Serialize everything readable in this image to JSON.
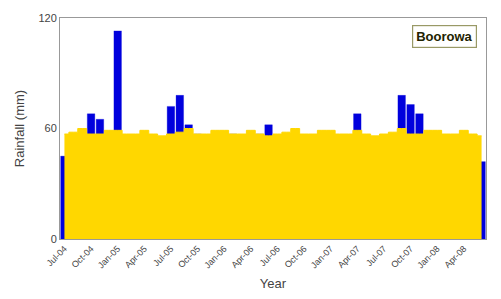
{
  "chart_data": {
    "type": "bar",
    "title": "Boorowa",
    "xlabel": "Year",
    "ylabel": "Rainfall (mm)",
    "categories": [
      "Jul-04",
      null,
      null,
      "Oct-04",
      null,
      null,
      "Jan-05",
      null,
      null,
      "Apr-05",
      null,
      null,
      "Jul-05",
      null,
      null,
      "Oct-05",
      null,
      null,
      "Jan-06",
      null,
      null,
      "Apr-06",
      null,
      null,
      "Jul-06",
      null,
      null,
      "Oct-06",
      null,
      null,
      "Jan-07",
      null,
      null,
      "Apr-07",
      null,
      null,
      "Jul-07",
      null,
      null,
      "Oct-07",
      null,
      null,
      "Jan-08",
      null,
      null,
      "Apr-08",
      null,
      null
    ],
    "series": [
      {
        "type": "area",
        "color": "#FFD700",
        "values": [
          57,
          58,
          60,
          57,
          57,
          59,
          59,
          57,
          57,
          59,
          57,
          56,
          57,
          58,
          60,
          57,
          57,
          59,
          59,
          57,
          57,
          59,
          57,
          56,
          57,
          58,
          60,
          57,
          57,
          59,
          59,
          57,
          57,
          59,
          57,
          56,
          57,
          58,
          60,
          57,
          57,
          59,
          59,
          57,
          57,
          59,
          57,
          56
        ]
      },
      {
        "type": "bar",
        "color": "#0000DD",
        "values": [
          45,
          55,
          56,
          68,
          65,
          42,
          113,
          47,
          35,
          42,
          5,
          38,
          72,
          78,
          62,
          57,
          15,
          10,
          58,
          57,
          9,
          5,
          57,
          62,
          15,
          18,
          18,
          22,
          30,
          40,
          15,
          25,
          30,
          68,
          47,
          10,
          10,
          47,
          78,
          73,
          68,
          14,
          56,
          47,
          28,
          20,
          10,
          42
        ]
      }
    ],
    "ylim": [
      0,
      120
    ],
    "yticks": [
      0,
      60,
      120
    ],
    "grid": false
  }
}
